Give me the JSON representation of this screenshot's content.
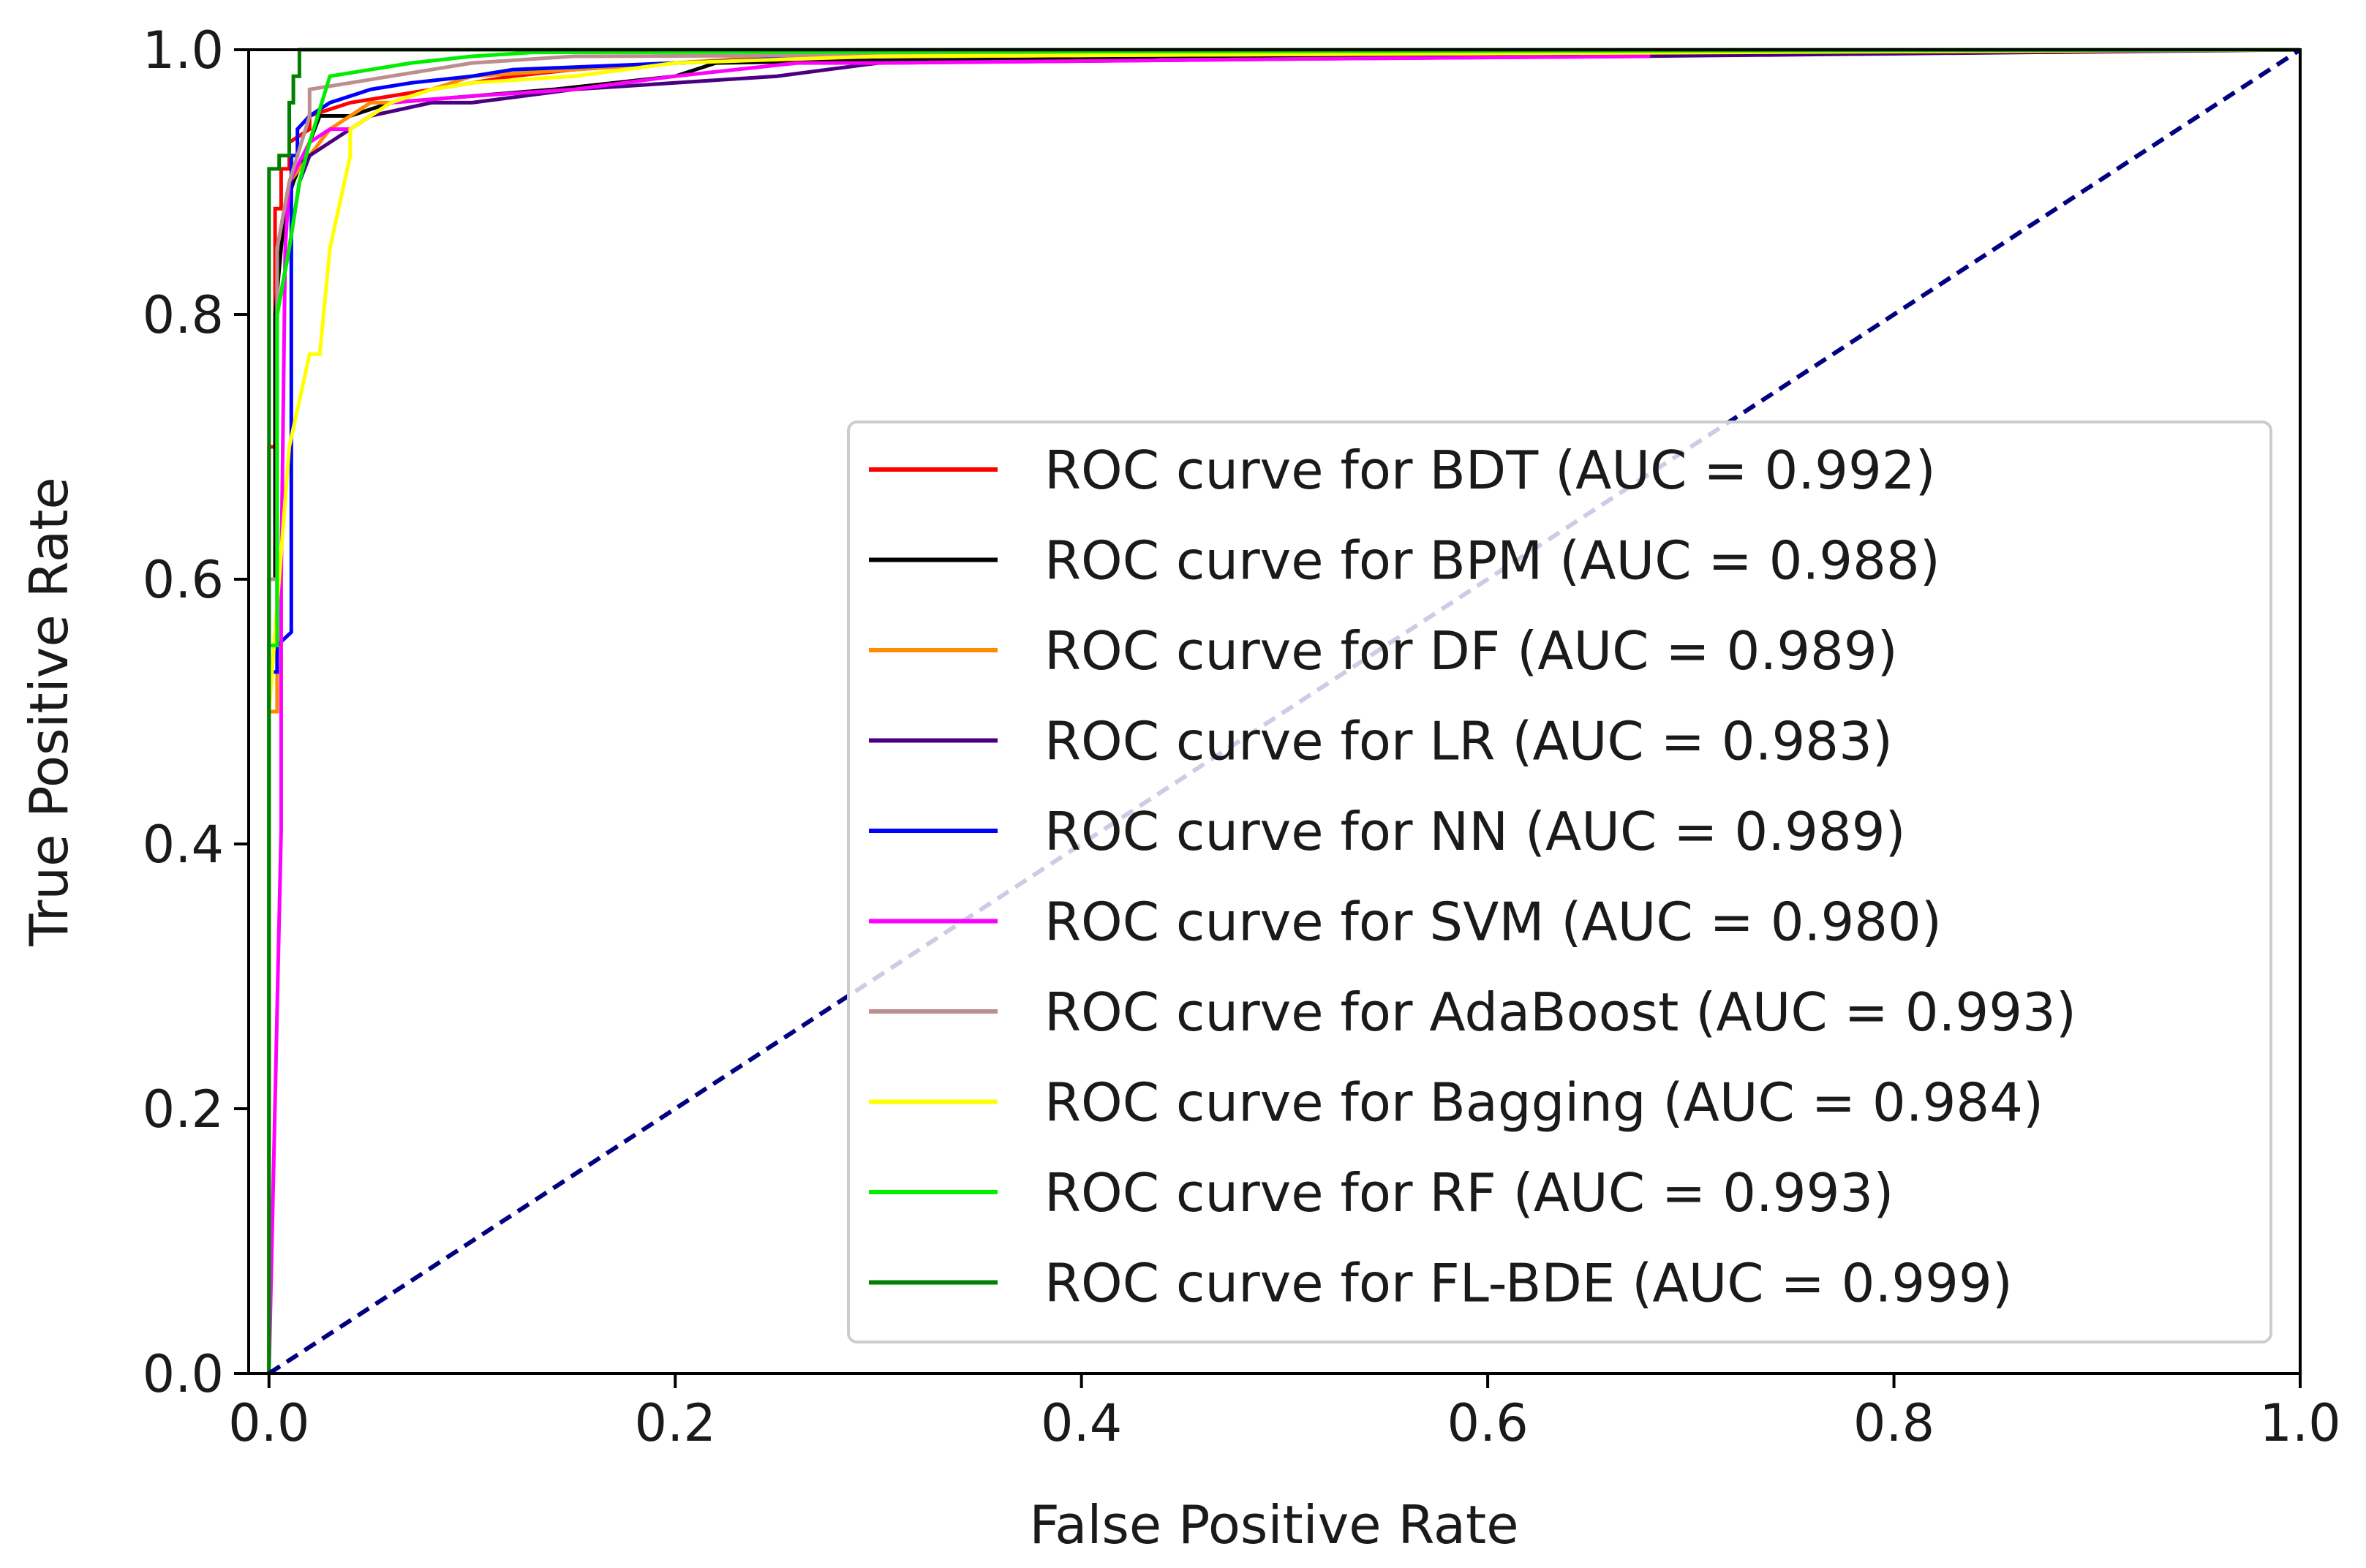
{
  "chart_data": {
    "type": "line",
    "title": "",
    "xlabel": "False Positive Rate",
    "ylabel": "True Positive Rate",
    "xlim": [
      -0.01,
      1.0
    ],
    "ylim": [
      0.0,
      1.0
    ],
    "xticks": [
      0.0,
      0.2,
      0.4,
      0.6,
      0.8,
      1.0
    ],
    "xtick_labels": [
      "0.0",
      "0.2",
      "0.4",
      "0.6",
      "0.8",
      "1.0"
    ],
    "yticks": [
      0.0,
      0.2,
      0.4,
      0.6,
      0.8,
      1.0
    ],
    "ytick_labels": [
      "0.0",
      "0.2",
      "0.4",
      "0.6",
      "0.8",
      "1.0"
    ],
    "grid": false,
    "legend_position": "lower-right",
    "reference_line": {
      "x": [
        0.0,
        1.0
      ],
      "y": [
        0.0,
        1.0
      ],
      "color": "#000080",
      "style": "dashed"
    },
    "series": [
      {
        "name": "ROC curve for BDT (AUC = 0.992)",
        "color": "#ff0000",
        "x": [
          0.0,
          0.0,
          0.003,
          0.003,
          0.006,
          0.006,
          0.01,
          0.01,
          0.02,
          0.02,
          0.04,
          0.06,
          0.08,
          0.1,
          0.12,
          0.15,
          0.2,
          0.3,
          1.0
        ],
        "y": [
          0.0,
          0.7,
          0.7,
          0.88,
          0.88,
          0.91,
          0.91,
          0.93,
          0.94,
          0.95,
          0.96,
          0.965,
          0.97,
          0.975,
          0.98,
          0.985,
          0.99,
          0.995,
          1.0
        ]
      },
      {
        "name": "ROC curve for BPM (AUC = 0.988)",
        "color": "#000000",
        "x": [
          0.0,
          0.0,
          0.003,
          0.003,
          0.006,
          0.008,
          0.012,
          0.02,
          0.025,
          0.04,
          0.06,
          0.1,
          0.14,
          0.2,
          0.22,
          0.3,
          0.4,
          0.44,
          1.0
        ],
        "y": [
          0.0,
          0.6,
          0.6,
          0.8,
          0.85,
          0.88,
          0.9,
          0.93,
          0.95,
          0.95,
          0.96,
          0.965,
          0.97,
          0.98,
          0.99,
          0.992,
          0.993,
          0.995,
          1.0
        ]
      },
      {
        "name": "ROC curve for DF (AUC = 0.989)",
        "color": "#ff8c00",
        "x": [
          0.0,
          0.0,
          0.004,
          0.004,
          0.01,
          0.02,
          0.03,
          0.04,
          0.05,
          0.06,
          0.08,
          0.1,
          0.15,
          0.2,
          0.25,
          0.3,
          1.0
        ],
        "y": [
          0.0,
          0.5,
          0.5,
          0.85,
          0.9,
          0.92,
          0.94,
          0.95,
          0.96,
          0.96,
          0.97,
          0.98,
          0.985,
          0.99,
          0.995,
          0.995,
          1.0
        ]
      },
      {
        "name": "ROC curve for LR (AUC = 0.983)",
        "color": "#4b0082",
        "x": [
          0.0,
          0.0,
          0.004,
          0.004,
          0.01,
          0.015,
          0.02,
          0.03,
          0.05,
          0.08,
          0.1,
          0.15,
          0.2,
          0.25,
          0.3,
          0.5,
          0.67,
          1.0
        ],
        "y": [
          0.0,
          0.55,
          0.55,
          0.8,
          0.85,
          0.9,
          0.92,
          0.93,
          0.95,
          0.96,
          0.96,
          0.97,
          0.975,
          0.98,
          0.99,
          0.993,
          0.995,
          1.0
        ]
      },
      {
        "name": "ROC curve for NN (AUC = 0.989)",
        "color": "#0000ff",
        "x": [
          0.0,
          0.0,
          0.004,
          0.004,
          0.011,
          0.011,
          0.014,
          0.014,
          0.02,
          0.03,
          0.04,
          0.05,
          0.07,
          0.1,
          0.12,
          0.2,
          0.28,
          0.4,
          1.0
        ],
        "y": [
          0.0,
          0.53,
          0.53,
          0.55,
          0.56,
          0.92,
          0.92,
          0.94,
          0.95,
          0.96,
          0.965,
          0.97,
          0.975,
          0.98,
          0.985,
          0.99,
          0.995,
          0.998,
          1.0
        ]
      },
      {
        "name": "ROC curve for SVM (AUC = 0.980)",
        "color": "#ff00ff",
        "x": [
          0.0,
          0.006,
          0.006,
          0.008,
          0.01,
          0.02,
          0.03,
          0.04,
          0.05,
          0.06,
          0.1,
          0.15,
          0.2,
          0.26,
          0.3,
          0.44,
          0.5,
          0.68
        ],
        "y": [
          0.0,
          0.41,
          0.6,
          0.85,
          0.9,
          0.93,
          0.94,
          0.94,
          0.95,
          0.96,
          0.965,
          0.97,
          0.98,
          0.99,
          0.99,
          0.992,
          0.993,
          0.995
        ]
      },
      {
        "name": "ROC curve for AdaBoost (AUC = 0.993)",
        "color": "#bc8f8f",
        "x": [
          0.0,
          0.0,
          0.004,
          0.004,
          0.01,
          0.02,
          0.02,
          0.04,
          0.06,
          0.08,
          0.1,
          0.12,
          0.15,
          1.0
        ],
        "y": [
          0.0,
          0.6,
          0.6,
          0.85,
          0.9,
          0.95,
          0.97,
          0.975,
          0.98,
          0.985,
          0.99,
          0.992,
          0.995,
          1.0
        ]
      },
      {
        "name": "ROC curve for Bagging (AUC = 0.984)",
        "color": "#ffff00",
        "x": [
          0.0,
          0.0,
          0.005,
          0.01,
          0.02,
          0.025,
          0.03,
          0.04,
          0.04,
          0.05,
          0.06,
          0.08,
          0.1,
          0.15,
          0.2,
          0.3,
          1.0
        ],
        "y": [
          0.0,
          0.5,
          0.6,
          0.7,
          0.77,
          0.77,
          0.85,
          0.92,
          0.94,
          0.95,
          0.96,
          0.97,
          0.975,
          0.98,
          0.99,
          0.995,
          1.0
        ]
      },
      {
        "name": "ROC curve for RF (AUC = 0.993)",
        "color": "#00ee00",
        "x": [
          0.0,
          0.0,
          0.004,
          0.004,
          0.01,
          0.015,
          0.02,
          0.03,
          0.05,
          0.07,
          0.1,
          0.13,
          1.0
        ],
        "y": [
          0.0,
          0.55,
          0.55,
          0.8,
          0.85,
          0.9,
          0.93,
          0.98,
          0.985,
          0.99,
          0.995,
          0.998,
          1.0
        ]
      },
      {
        "name": "ROC curve for FL-BDE (AUC = 0.999)",
        "color": "#008000",
        "x": [
          0.0,
          0.0,
          0.0,
          0.005,
          0.005,
          0.01,
          0.01,
          0.012,
          0.012,
          0.015,
          0.015,
          1.0
        ],
        "y": [
          0.0,
          0.0,
          0.91,
          0.91,
          0.92,
          0.92,
          0.96,
          0.96,
          0.98,
          0.98,
          1.0,
          1.0
        ]
      }
    ]
  }
}
